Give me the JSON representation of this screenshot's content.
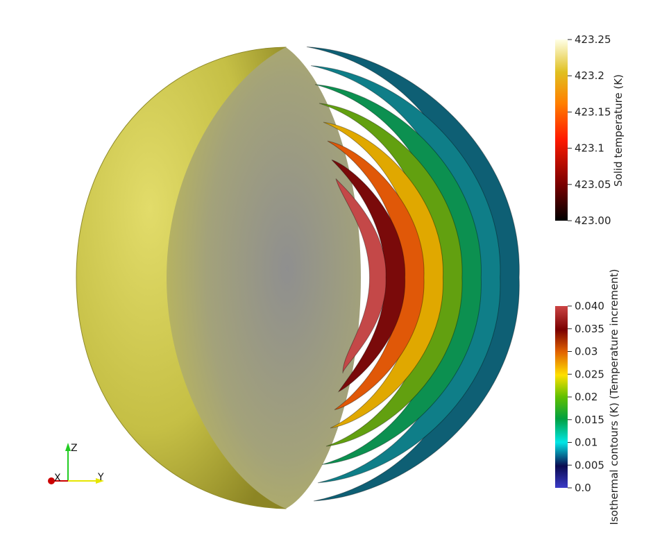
{
  "colorbars": [
    {
      "title": "Solid temperature (K)",
      "ticks": [
        "423.25",
        "423.2",
        "423.15",
        "423.1",
        "423.05",
        "423.00"
      ],
      "range": [
        423.0,
        423.25
      ],
      "colormap": [
        "#000000",
        "#7a0000",
        "#ff1a00",
        "#ff8000",
        "#e0c020",
        "#ffffe0"
      ]
    },
    {
      "title": "Isothermal contours (K)  (Temperature increment)",
      "ticks": [
        "0.040",
        "0.035",
        "0.03",
        "0.025",
        "0.02",
        "0.015",
        "0.01",
        "0.005",
        "0.0"
      ],
      "range": [
        0.0,
        0.04
      ],
      "colormap": [
        "#3b3bc8",
        "#0a0a50",
        "#00e6e6",
        "#00a040",
        "#60c000",
        "#ffe000",
        "#e06000",
        "#7a0000",
        "#cc4444"
      ]
    }
  ],
  "axes_triad": {
    "x": "X",
    "y": "Y",
    "z": "Z"
  },
  "colors": {
    "sphere": "#c8c24a",
    "cut_face": "#9a9a8a"
  },
  "chart_data": {
    "type": "3d-render",
    "description_free": true,
    "solid_temperature_range": [
      423.0,
      423.25
    ],
    "contour_levels": [
      0.005,
      0.01,
      0.015,
      0.02,
      0.025,
      0.03,
      0.035,
      0.04
    ],
    "contour_colors": [
      "#0e5f74",
      "#0f7e88",
      "#0c9050",
      "#62a010",
      "#e0a800",
      "#e05808",
      "#7a0a0a",
      "#c44848"
    ]
  }
}
